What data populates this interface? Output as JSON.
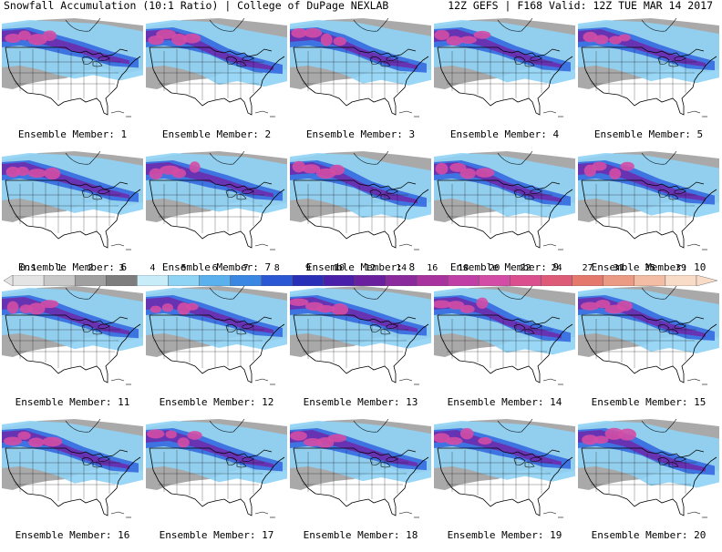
{
  "header": {
    "left": "Snowfall Accumulation (10:1 Ratio) | College of DuPage NEXLAB",
    "right": "12Z GEFS | F168 Valid: 12Z TUE MAR 14 2017"
  },
  "caption_prefix": "Ensemble Member: ",
  "members": [
    "1",
    "2",
    "3",
    "4",
    "5",
    "6",
    "7",
    "8",
    "9",
    "10",
    "11",
    "12",
    "13",
    "14",
    "15",
    "16",
    "17",
    "18",
    "19",
    "20"
  ],
  "legend": {
    "labels": [
      "0.1",
      "1",
      "2",
      "3",
      "4",
      "5",
      "6",
      "7",
      "8",
      "9",
      "10",
      "12",
      "14",
      "16",
      "18",
      "20",
      "22",
      "24",
      "27",
      "31",
      "35",
      "39"
    ],
    "colors": [
      "#e4e4e4",
      "#c8c8c8",
      "#a0a0a0",
      "#7e7e7e",
      "#c9ecf9",
      "#8fd3f5",
      "#5ab1ee",
      "#3a86e3",
      "#2a57d4",
      "#2a2fb8",
      "#4a1fa9",
      "#6a1f9e",
      "#8a2a9c",
      "#a8339f",
      "#c03fa6",
      "#d34ca5",
      "#dc4f8e",
      "#de5b78",
      "#e4786d",
      "#eb9b83",
      "#f2bda4",
      "#f8dcc8"
    ]
  },
  "colors": {
    "snow_light": "#8fd3f5",
    "snow_mid": "#3a6fe0",
    "snow_heavy": "#6a2fb0",
    "snow_extreme": "#d34ca5",
    "terrain_gray": "#9a9a9a",
    "land": "#ffffff",
    "borders": "#000000"
  }
}
